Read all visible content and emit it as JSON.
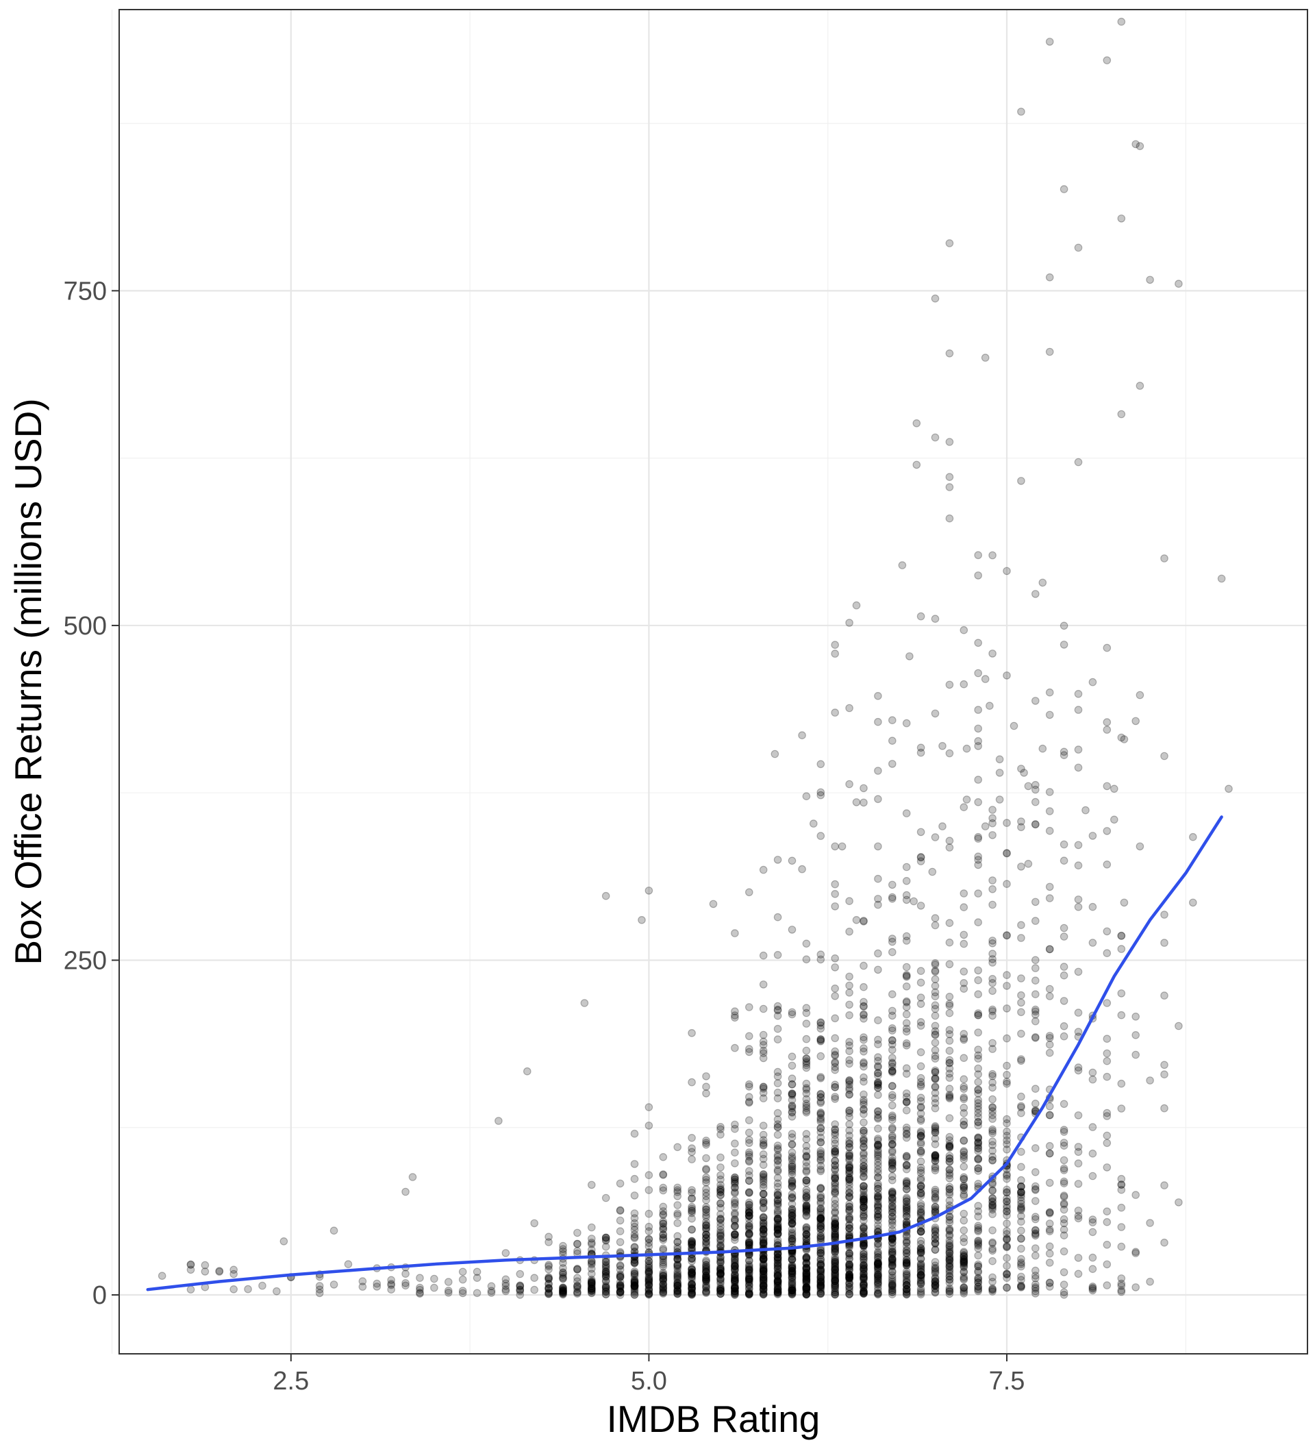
{
  "chart_data": {
    "type": "scatter",
    "xlabel": "IMDB Rating",
    "ylabel": "Box Office Returns (millions USD)",
    "xlim": [
      1.3,
      9.6
    ],
    "ylim": [
      -44,
      960
    ],
    "x_ticks": [
      2.5,
      5.0,
      7.5
    ],
    "x_tick_labels": [
      "2.5",
      "5.0",
      "7.5"
    ],
    "x_minor": [
      1.25,
      3.75,
      6.25,
      8.75
    ],
    "y_ticks": [
      0,
      250,
      500,
      750
    ],
    "y_tick_labels": [
      "0",
      "250",
      "500",
      "750"
    ],
    "y_minor": [
      125,
      375,
      625,
      875
    ],
    "grid": true,
    "point_color": "#000000",
    "point_alpha": 0.22,
    "smooth_color": "#2F4FEA",
    "outliers": [
      [
        7.8,
        936
      ],
      [
        8.43,
        858
      ],
      [
        8.3,
        804
      ],
      [
        7.8,
        760
      ],
      [
        7.35,
        700
      ],
      [
        8.43,
        679
      ],
      [
        6.87,
        651
      ],
      [
        6.87,
        620
      ],
      [
        8.0,
        622
      ],
      [
        7.6,
        608
      ],
      [
        9.0,
        535
      ],
      [
        7.75,
        532
      ],
      [
        6.77,
        545
      ],
      [
        6.45,
        515
      ],
      [
        7.0,
        505
      ],
      [
        6.82,
        477
      ],
      [
        7.3,
        487
      ],
      [
        7.35,
        460
      ],
      [
        8.43,
        448
      ],
      [
        7.38,
        440
      ],
      [
        6.8,
        427
      ],
      [
        7.3,
        423
      ],
      [
        7.55,
        425
      ],
      [
        8.32,
        415
      ],
      [
        6.07,
        418
      ],
      [
        5.88,
        404
      ],
      [
        6.9,
        405
      ],
      [
        7.05,
        410
      ],
      [
        7.75,
        408
      ],
      [
        7.45,
        400
      ],
      [
        7.22,
        408
      ],
      [
        7.45,
        390
      ],
      [
        7.62,
        390
      ],
      [
        7.65,
        380
      ],
      [
        9.05,
        378
      ],
      [
        8.2,
        380
      ],
      [
        8.25,
        378
      ],
      [
        6.45,
        368
      ],
      [
        7.22,
        370
      ],
      [
        7.45,
        370
      ],
      [
        8.05,
        362
      ],
      [
        7.35,
        350
      ],
      [
        8.25,
        355
      ],
      [
        8.8,
        342
      ],
      [
        6.15,
        352
      ],
      [
        6.3,
        335
      ],
      [
        6.35,
        335
      ],
      [
        6.6,
        335
      ],
      [
        7.3,
        325
      ],
      [
        7.05,
        350
      ],
      [
        5.9,
        325
      ],
      [
        6.07,
        318
      ],
      [
        7.5,
        330
      ],
      [
        6.98,
        316
      ],
      [
        7.65,
        322
      ],
      [
        8.43,
        335
      ],
      [
        4.7,
        298
      ],
      [
        5.0,
        302
      ],
      [
        4.95,
        280
      ],
      [
        5.45,
        292
      ],
      [
        8.8,
        293
      ],
      [
        6.45,
        280
      ],
      [
        6.85,
        294
      ],
      [
        8.32,
        293
      ],
      [
        4.55,
        218
      ],
      [
        4.15,
        167
      ],
      [
        3.95,
        130
      ],
      [
        3.3,
        77
      ],
      [
        3.35,
        88
      ],
      [
        2.45,
        40
      ],
      [
        2.8,
        48
      ]
    ],
    "smooth": [
      [
        1.5,
        4
      ],
      [
        2.0,
        10
      ],
      [
        2.5,
        15
      ],
      [
        3.0,
        19
      ],
      [
        3.5,
        23
      ],
      [
        4.0,
        26
      ],
      [
        4.5,
        28
      ],
      [
        5.0,
        30
      ],
      [
        5.5,
        32
      ],
      [
        6.0,
        35
      ],
      [
        6.25,
        38
      ],
      [
        6.5,
        42
      ],
      [
        6.75,
        47
      ],
      [
        7.0,
        58
      ],
      [
        7.25,
        72
      ],
      [
        7.5,
        98
      ],
      [
        7.75,
        140
      ],
      [
        8.0,
        187
      ],
      [
        8.25,
        238
      ],
      [
        8.5,
        280
      ],
      [
        8.75,
        315
      ],
      [
        9.0,
        357
      ]
    ]
  }
}
